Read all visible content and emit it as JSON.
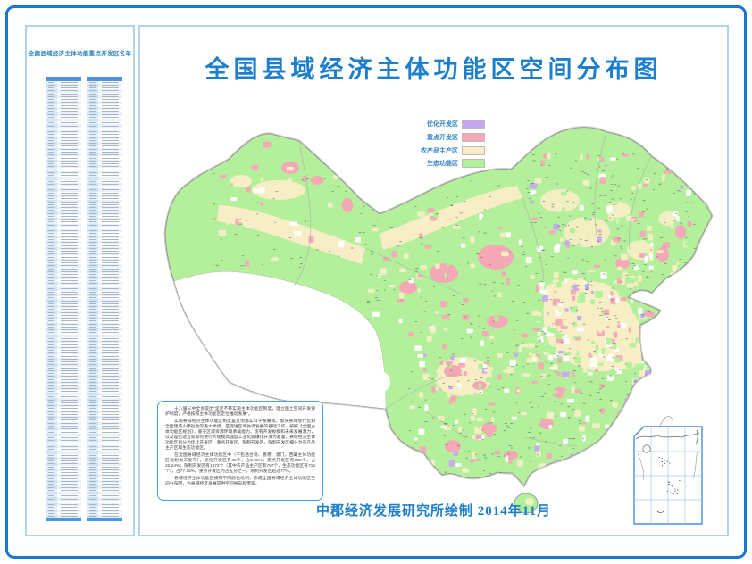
{
  "theme": {
    "frame_blue": "#1b76ce",
    "panel_border_blue": "#b3d1ef",
    "title_blue": "#1d7ecb",
    "label_blue": "#2a7fc0"
  },
  "poster": {
    "title": "全国县域经济主体功能区空间分布图",
    "attribution": "中郡经济发展研究所绘制  2014年11月"
  },
  "sidebar": {
    "title": "全国县域经济主体功能重点开发区名单",
    "column_tables": 2,
    "rows_per_table": 150
  },
  "legend": {
    "items": [
      {
        "label": "优化开发区",
        "color": "#c5a9ef"
      },
      {
        "label": "重点开发区",
        "color": "#f4a8b5"
      },
      {
        "label": "农产品主产区",
        "color": "#f7eec5"
      },
      {
        "label": "生态功能区",
        "color": "#b0f09b"
      }
    ]
  },
  "map": {
    "base_green": "#b4ef9b",
    "unplanned_white": "#ffffff",
    "coast_gray": "#8c8c8c"
  },
  "description_box": {
    "paragraphs": [
      "十八届三中全会提出\"坚定不移实施主体功能区制度，建立国土空间开发保护制度，严格按照主体功能区定位推动发展\"。",
      "实施县域经济主体功能区制度是贯彻落实科学发展观、加快县域现代化和全面建成小康社会的重大举措，是促进区域协调发展的基础工作。按照《全国主体功能区规划》，基于区域资源环境承载能力、现有开发规模和未来发展潜力，以及是否适宜或如何进行大规模高强度工业化城镇化开发为基准，县域经济主体功能区划分为优化开发区、重点开发区、限制开发区，限制开发区细分为农产品主产区和生态功能区。",
      "在全国县域经济主体功能区中（不包括台湾、香港、澳门，西藏主体功能区规划尚未发布），优化开发区有48个，占2.52%；重点开发区有386个，占20.24%；限制开发区有1473个（其中农产品主产区有757个，生态功能区有716个），占77.25%。重点开发区约占五分之一，限制开发区超过77%。",
      "县域经济主体功能区按照不同颜色绘制，形成全国县域经济主体功能区空间分布图，为县域经济发展提供空间导向和借鉴。"
    ]
  }
}
